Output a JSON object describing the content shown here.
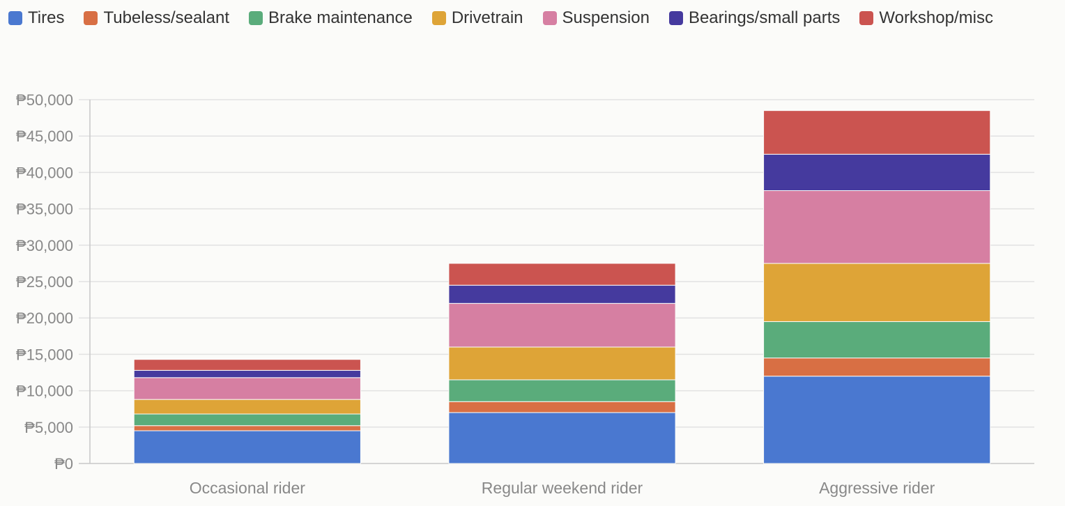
{
  "chart_data": {
    "type": "bar",
    "stacked": true,
    "categories": [
      "Occasional rider",
      "Regular weekend rider",
      "Aggressive rider"
    ],
    "series": [
      {
        "name": "Tires",
        "color": "#4a78d0",
        "values": [
          4500,
          7000,
          12000
        ]
      },
      {
        "name": "Tubeless/sealant",
        "color": "#d86f44",
        "values": [
          700,
          1500,
          2500
        ]
      },
      {
        "name": "Brake maintenance",
        "color": "#5aac7b",
        "values": [
          1600,
          3000,
          5000
        ]
      },
      {
        "name": "Drivetrain",
        "color": "#dea437",
        "values": [
          2000,
          4500,
          8000
        ]
      },
      {
        "name": "Suspension",
        "color": "#d67fa2",
        "values": [
          3000,
          6000,
          10000
        ]
      },
      {
        "name": "Bearings/small parts",
        "color": "#453a9e",
        "values": [
          1000,
          2500,
          5000
        ]
      },
      {
        "name": "Workshop/misc",
        "color": "#cb5450",
        "values": [
          1500,
          3000,
          6000
        ]
      }
    ],
    "yticks": [
      "₱0",
      "₱5,000",
      "₱10,000",
      "₱15,000",
      "₱20,000",
      "₱25,000",
      "₱30,000",
      "₱35,000",
      "₱40,000",
      "₱45,000",
      "₱50,000"
    ],
    "ylim": [
      0,
      50000
    ],
    "title": "",
    "xlabel": "",
    "ylabel": "",
    "grid": true,
    "legend_position": "top-left"
  }
}
